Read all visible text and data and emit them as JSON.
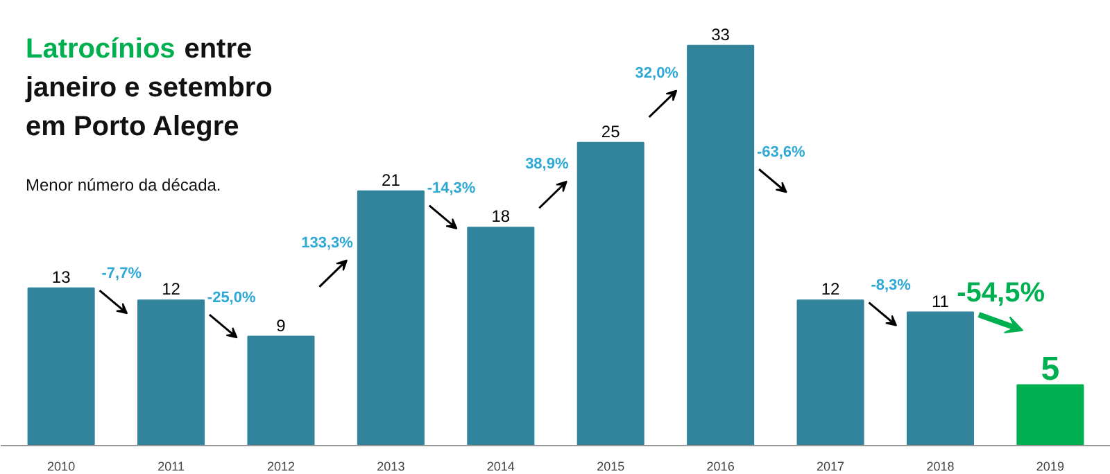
{
  "chart_data": {
    "type": "bar",
    "title": "Latrocínios entre\njaneiro e setembro\nem Porto Alegre",
    "subtitle": "Menor número da década.",
    "categories": [
      "2010",
      "2011",
      "2012",
      "2013",
      "2014",
      "2015",
      "2016",
      "2017",
      "2018",
      "2019"
    ],
    "values": [
      13,
      12,
      9,
      21,
      18,
      25,
      33,
      12,
      11,
      5
    ],
    "colors": [
      "#31849b",
      "#31849b",
      "#31849b",
      "#31849b",
      "#31849b",
      "#31849b",
      "#31849b",
      "#31849b",
      "#31849b",
      "#00b050"
    ],
    "data_labels": true,
    "annotations": [
      "-7,7%",
      "-25,0%",
      "133,3%",
      "-14,3%",
      "38,9%",
      "32,0%",
      "-63,6%",
      "-8,3%",
      "-54,5%"
    ],
    "grid": false
  }
}
